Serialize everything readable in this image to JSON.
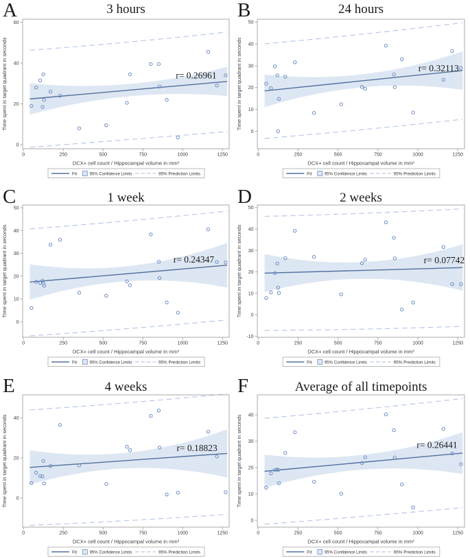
{
  "colors": {
    "fit": "#52709e",
    "band": "#dde7f3",
    "marker": "#6b8cc4",
    "prediction": "#b9c7e8",
    "frame": "#a9a9a9",
    "text": "#3d3d3d",
    "legend_border": "#a9a9a9"
  },
  "chart_data": {
    "type": "scatter",
    "xlabel": "DCX+ cell count / Hippocampal volume in mm³",
    "ylabel": "Time spent in target quadrant in seconds",
    "legend": [
      "Fit",
      "95% Confidence Limits",
      "95% Prediction Limits"
    ],
    "legend_position": "bottom",
    "grid": false,
    "xlim": [
      -5,
      1292
    ],
    "x_ticks": [
      0,
      250,
      500,
      750,
      1000,
      1250
    ],
    "x_values": [
      50,
      80,
      105,
      120,
      125,
      130,
      170,
      230,
      350,
      520,
      650,
      670,
      800,
      850,
      855,
      900,
      970,
      1160,
      1215,
      1270
    ],
    "panels": [
      {
        "letter": "A",
        "title": "3 hours",
        "r_label": "r= 0.26961",
        "r_pos": [
          1085,
          32.5
        ],
        "ylim": [
          -2,
          61.5
        ],
        "y_ticks": [
          0,
          20,
          40,
          60
        ],
        "y_values": [
          19,
          28,
          31.5,
          18.5,
          34.5,
          22,
          26,
          24,
          8,
          9.5,
          20.5,
          34.5,
          39.5,
          39.5,
          28.5,
          22,
          3.5,
          45.5,
          29,
          34
        ],
        "fit": [
          22.4,
          31.0
        ],
        "ci_half": [
          7.7,
          3.0,
          7.2
        ],
        "pred_upper": [
          46.3,
          50.3,
          55.2
        ],
        "pred_lower": [
          -1.3,
          2.5,
          6.4
        ]
      },
      {
        "letter": "B",
        "title": "24 hours",
        "r_label": "r= 0.32113",
        "r_pos": [
          1130,
          27.5
        ],
        "ylim": [
          -8,
          51.3
        ],
        "y_ticks": [
          0,
          10,
          20,
          30,
          40,
          50
        ],
        "y_values": [
          21.8,
          19.7,
          29.7,
          25.6,
          0,
          14.8,
          25,
          31.6,
          8.4,
          12.4,
          20.3,
          19.5,
          39.2,
          26,
          20.2,
          33,
          8.6,
          23.6,
          36.7,
          29
        ],
        "fit": [
          18.5,
          27.8
        ],
        "ci_half": [
          7.5,
          3.0,
          8.8
        ],
        "pred_upper": [
          40.0,
          44.5,
          49.7
        ],
        "pred_lower": [
          -3.3,
          0.8,
          5.5
        ]
      },
      {
        "letter": "C",
        "title": "1 week",
        "r_label": "r= 0.24347",
        "r_pos": [
          1070,
          26
        ],
        "ylim": [
          -6.8,
          51.2
        ],
        "y_ticks": [
          0,
          10,
          20,
          30,
          40,
          50
        ],
        "y_values": [
          6,
          17.5,
          17,
          18,
          16.9,
          15.8,
          33.8,
          35.9,
          12.7,
          11.4,
          17.7,
          16,
          38.3,
          26.3,
          19.2,
          8.5,
          4,
          40.5,
          26.2,
          26
        ],
        "fit": [
          17.4,
          24.8
        ],
        "ci_half": [
          7.8,
          3.3,
          9.8
        ],
        "pred_upper": [
          40.7,
          44.3,
          48.5
        ],
        "pred_lower": [
          -6.2,
          -3.0,
          0.8
        ]
      },
      {
        "letter": "D",
        "title": "2 weeks",
        "r_label": "r= 0.07742",
        "r_pos": [
          1165,
          24
        ],
        "ylim": [
          -10.5,
          51.2
        ],
        "y_ticks": [
          -10,
          0,
          10,
          20,
          30,
          40,
          50
        ],
        "y_values": [
          7.8,
          10.4,
          19.4,
          23.9,
          12.6,
          10.2,
          26.4,
          39.1,
          27,
          9.5,
          24.1,
          25.7,
          43.1,
          35.9,
          26.3,
          2.4,
          5.7,
          31.6,
          14.3,
          14.2
        ],
        "fit": [
          19.4,
          22.0
        ],
        "ci_half": [
          8.9,
          3.9,
          10.8
        ],
        "pred_upper": [
          45.9,
          47.3,
          49.4
        ],
        "pred_lower": [
          -7.3,
          -6.7,
          -5.4
        ]
      },
      {
        "letter": "E",
        "title": "4 weeks",
        "r_label": "r= 0.18823",
        "r_pos": [
          1090,
          23.5
        ],
        "ylim": [
          -14.5,
          51.5
        ],
        "y_ticks": [
          0,
          20,
          40
        ],
        "y_values": [
          7.5,
          12.7,
          11,
          10.8,
          18.5,
          7.3,
          16,
          36.5,
          16.3,
          7,
          25.6,
          23.9,
          41,
          43.7,
          25.2,
          1.8,
          2.7,
          33.1,
          20.8,
          2.9
        ],
        "fit": [
          15.3,
          22.3
        ],
        "ci_half": [
          8.6,
          3.9,
          12.0
        ],
        "pred_upper": [
          44.0,
          47.6,
          52.0
        ],
        "pred_lower": [
          -13.6,
          -11.2,
          -8.1
        ]
      },
      {
        "letter": "F",
        "title": "Average of all timepoints",
        "r_label": "r= 0.26441",
        "r_pos": [
          1120,
          27.5
        ],
        "ylim": [
          -2.6,
          47.6
        ],
        "y_ticks": [
          0,
          10,
          20,
          30,
          40
        ],
        "y_values": [
          12.4,
          17.8,
          19.1,
          19.3,
          19.1,
          14.1,
          25.6,
          33.4,
          14.6,
          10.1,
          21.7,
          23.9,
          40.2,
          34.2,
          23.8,
          13.6,
          4.9,
          34.7,
          25.4,
          21.3
        ],
        "fit": [
          18.6,
          25.5
        ],
        "ci_half": [
          6.3,
          2.8,
          7.9
        ],
        "pred_upper": [
          38.7,
          42.2,
          46.2
        ],
        "pred_lower": [
          -1.5,
          1.5,
          4.8
        ]
      }
    ]
  }
}
